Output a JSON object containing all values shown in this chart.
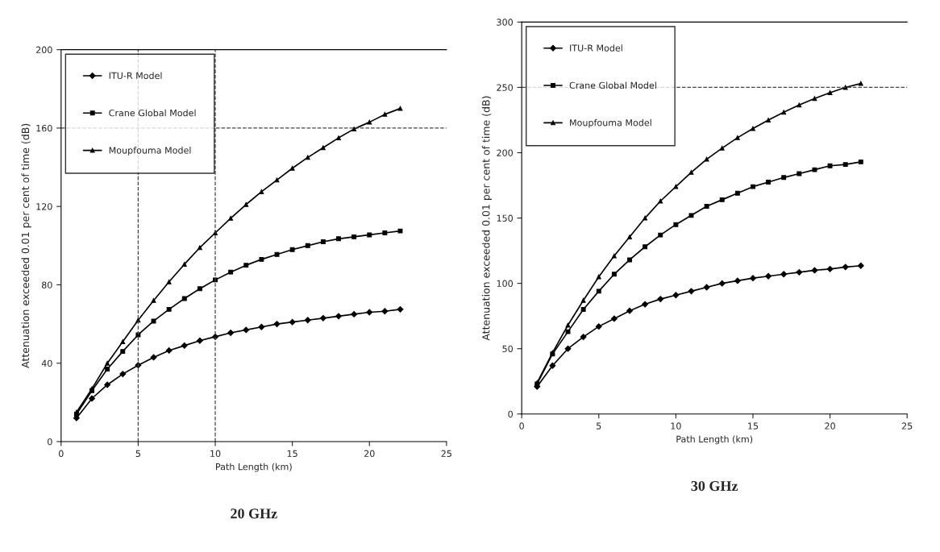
{
  "chart_data": [
    {
      "type": "line",
      "title": "20 GHz",
      "xlabel": "Path Length (km)",
      "ylabel": "Attenuation exceeded 0.01 per cent of time (dB)",
      "x": [
        1,
        2,
        3,
        4,
        5,
        6,
        7,
        8,
        9,
        10,
        11,
        12,
        13,
        14,
        15,
        16,
        17,
        18,
        19,
        20,
        21,
        22
      ],
      "series": [
        {
          "name": "ITU-R Model",
          "color": "#000000",
          "marker": "diamond",
          "values": [
            12,
            22,
            29,
            34.5,
            39,
            43,
            46.5,
            49,
            51.5,
            53.5,
            55.5,
            57,
            58.5,
            60,
            61,
            62,
            63,
            64,
            65,
            66,
            66.5,
            67.5
          ]
        },
        {
          "name": "Crane Global Model",
          "color": "#000000",
          "marker": "square",
          "values": [
            14,
            26,
            37,
            46,
            54.5,
            61.5,
            67.5,
            73,
            78,
            82.5,
            86.5,
            90,
            93,
            95.5,
            98,
            100,
            102,
            103.5,
            104.5,
            105.5,
            106.5,
            107.5
          ]
        },
        {
          "name": "Moupfouma Model",
          "color": "#000000",
          "marker": "triangle",
          "values": [
            15,
            27,
            40,
            51,
            62,
            72,
            81.5,
            90.5,
            99,
            106.5,
            114,
            121,
            127.5,
            133.5,
            139.5,
            145,
            150,
            155,
            159.5,
            163,
            167,
            170
          ]
        }
      ],
      "xlim": [
        0,
        25
      ],
      "xticks": [
        0,
        5,
        10,
        15,
        20,
        25
      ],
      "ylim": [
        0,
        200
      ],
      "yticks": [
        0,
        40,
        80,
        120,
        160,
        200
      ],
      "ref_lines": [
        {
          "axis": "x",
          "value": 5,
          "line_style": "dashed"
        },
        {
          "axis": "x",
          "value": 10,
          "line_style": "dashed"
        },
        {
          "axis": "y",
          "value": 160,
          "line_style": "dashed"
        }
      ],
      "legend": "top left",
      "grid": false
    },
    {
      "type": "line",
      "title": "30 GHz",
      "xlabel": "Path Length (km)",
      "ylabel": "Attenuation exceeded 0.01 per cent of time (dB)",
      "x": [
        1,
        2,
        3,
        4,
        5,
        6,
        7,
        8,
        9,
        10,
        11,
        12,
        13,
        14,
        15,
        16,
        17,
        18,
        19,
        20,
        21,
        22
      ],
      "series": [
        {
          "name": "ITU-R Model",
          "color": "#000000",
          "marker": "diamond",
          "values": [
            21,
            37,
            50,
            59,
            67,
            73,
            79,
            84,
            88,
            91,
            94,
            97,
            100,
            102,
            104,
            105.5,
            107,
            108.5,
            110,
            111,
            112.5,
            113.5
          ]
        },
        {
          "name": "Crane Global Model",
          "color": "#000000",
          "marker": "square",
          "values": [
            23,
            46,
            63,
            80,
            94,
            107,
            118,
            128,
            137,
            145,
            152,
            159,
            164,
            169,
            174,
            177.5,
            181,
            184,
            187,
            190,
            191,
            193
          ]
        },
        {
          "name": "Moupfouma Model",
          "color": "#000000",
          "marker": "triangle",
          "values": [
            24,
            47,
            68,
            87,
            105,
            121,
            135.5,
            150,
            163,
            174,
            185,
            195,
            203.5,
            211.5,
            218.5,
            225,
            231,
            236.5,
            241.5,
            246,
            250,
            253
          ]
        }
      ],
      "xlim": [
        0,
        25
      ],
      "xticks": [
        0,
        5,
        10,
        15,
        20,
        25
      ],
      "ylim": [
        0,
        300
      ],
      "yticks": [
        0,
        50,
        100,
        150,
        200,
        250,
        300
      ],
      "ref_lines": [
        {
          "axis": "y",
          "value": 250,
          "line_style": "dashed"
        }
      ],
      "legend": "top left",
      "grid": false
    }
  ]
}
